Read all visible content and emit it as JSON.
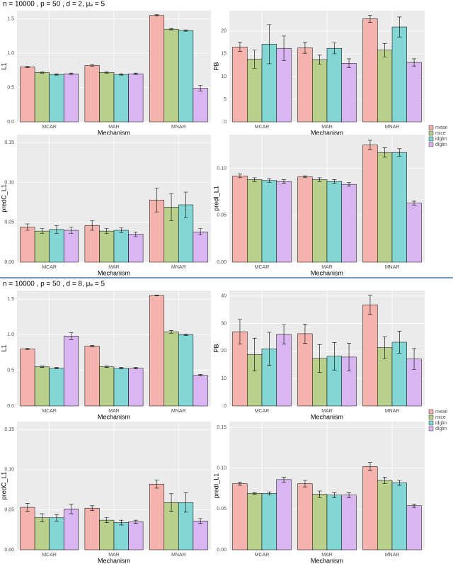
{
  "headings": [
    "n = 10000 , p = 50 , d = 2,  μₑ = 5",
    "n = 10000 , p = 50 , d = 8,  μₑ = 5"
  ],
  "chart_data": [
    {
      "type": "bar",
      "ylabel": "L1",
      "xlabel": "Mechanism",
      "categories": [
        "MCAR",
        "MAR",
        "MNAR"
      ],
      "ylim": [
        0,
        1.62
      ],
      "yticks": [
        {
          "value": 0,
          "label": "0.0"
        },
        0.5,
        {
          "value": 1,
          "label": "1.0"
        },
        1.5
      ],
      "series": [
        {
          "name": "mean",
          "color": "#F4B3AC",
          "values": [
            0.8,
            0.82,
            1.55
          ],
          "errors": [
            0.01,
            0.01,
            0.01
          ]
        },
        {
          "name": "mice",
          "color": "#B9CF8C",
          "values": [
            0.72,
            0.72,
            1.35
          ],
          "errors": [
            0.01,
            0.01,
            0.01
          ]
        },
        {
          "name": "idglm",
          "color": "#82D6D4",
          "values": [
            0.69,
            0.69,
            1.33
          ],
          "errors": [
            0.01,
            0.01,
            0.01
          ]
        },
        {
          "name": "dlglm",
          "color": "#D9B6F2",
          "values": [
            0.7,
            0.7,
            0.49
          ],
          "errors": [
            0.01,
            0.01,
            0.04
          ]
        }
      ]
    },
    {
      "type": "bar",
      "ylabel": "PB",
      "xlabel": "Mechanism",
      "categories": [
        "MCAR",
        "MAR",
        "MNAR"
      ],
      "ylim": [
        0,
        24.5
      ],
      "yticks": [
        0,
        5,
        10,
        15,
        20
      ],
      "legend": "right",
      "series": [
        {
          "name": "mean",
          "color": "#F4B3AC",
          "values": [
            16.5,
            16.3,
            22.7
          ],
          "errors": [
            1.0,
            1.2,
            0.8
          ]
        },
        {
          "name": "mice",
          "color": "#B9CF8C",
          "values": [
            13.8,
            13.7,
            15.8
          ],
          "errors": [
            2.0,
            1.0,
            1.5
          ]
        },
        {
          "name": "idglm",
          "color": "#82D6D4",
          "values": [
            17.1,
            16.2,
            20.9
          ],
          "errors": [
            4.3,
            1.2,
            2.2
          ]
        },
        {
          "name": "dlglm",
          "color": "#D9B6F2",
          "values": [
            16.2,
            12.9,
            13.1
          ],
          "errors": [
            2.7,
            1.0,
            0.8
          ]
        }
      ]
    },
    {
      "type": "bar",
      "ylabel": "predC_L1",
      "xlabel": "Mechanism",
      "categories": [
        "MCAR",
        "MAR",
        "MNAR"
      ],
      "ylim": [
        0,
        0.16
      ],
      "yticks": [
        {
          "value": 0,
          "label": "0.00"
        },
        0.05,
        {
          "value": 0.1,
          "label": "0.10"
        },
        0.15
      ],
      "series": [
        {
          "name": "mean",
          "color": "#F4B3AC",
          "values": [
            0.044,
            0.046,
            0.078
          ],
          "errors": [
            0.004,
            0.006,
            0.015
          ]
        },
        {
          "name": "mice",
          "color": "#B9CF8C",
          "values": [
            0.039,
            0.039,
            0.069
          ],
          "errors": [
            0.003,
            0.003,
            0.017
          ]
        },
        {
          "name": "idglm",
          "color": "#82D6D4",
          "values": [
            0.041,
            0.04,
            0.072
          ],
          "errors": [
            0.005,
            0.003,
            0.016
          ]
        },
        {
          "name": "dlglm",
          "color": "#D9B6F2",
          "values": [
            0.04,
            0.035,
            0.038
          ],
          "errors": [
            0.004,
            0.003,
            0.004
          ]
        }
      ]
    },
    {
      "type": "bar",
      "ylabel": "predI_L1",
      "xlabel": "Mechanism",
      "categories": [
        "MCAR",
        "MAR",
        "MNAR"
      ],
      "ylim": [
        0,
        0.136
      ],
      "yticks": [
        {
          "value": 0,
          "label": "0.00"
        },
        0.05,
        {
          "value": 0.1,
          "label": "0.10"
        }
      ],
      "series": [
        {
          "name": "mean",
          "color": "#F4B3AC",
          "values": [
            0.092,
            0.091,
            0.125
          ],
          "errors": [
            0.002,
            0.001,
            0.005
          ]
        },
        {
          "name": "mice",
          "color": "#B9CF8C",
          "values": [
            0.088,
            0.088,
            0.117
          ],
          "errors": [
            0.002,
            0.002,
            0.005
          ]
        },
        {
          "name": "idglm",
          "color": "#82D6D4",
          "values": [
            0.087,
            0.086,
            0.117
          ],
          "errors": [
            0.002,
            0.002,
            0.004
          ]
        },
        {
          "name": "dlglm",
          "color": "#D9B6F2",
          "values": [
            0.086,
            0.083,
            0.063
          ],
          "errors": [
            0.002,
            0.002,
            0.002
          ]
        }
      ]
    },
    {
      "type": "bar",
      "ylabel": "L1",
      "xlabel": "Mechanism",
      "categories": [
        "MCAR",
        "MAR",
        "MNAR"
      ],
      "ylim": [
        0,
        1.62
      ],
      "yticks": [
        {
          "value": 0,
          "label": "0.0"
        },
        0.5,
        {
          "value": 1,
          "label": "1.0"
        },
        1.5
      ],
      "series": [
        {
          "name": "mean",
          "color": "#F4B3AC",
          "values": [
            0.8,
            0.84,
            1.55
          ],
          "errors": [
            0.01,
            0.01,
            0.005
          ]
        },
        {
          "name": "mice",
          "color": "#B9CF8C",
          "values": [
            0.55,
            0.55,
            1.04
          ],
          "errors": [
            0.01,
            0.01,
            0.02
          ]
        },
        {
          "name": "idglm",
          "color": "#82D6D4",
          "values": [
            0.53,
            0.53,
            1.0
          ],
          "errors": [
            0.01,
            0.01,
            0.01
          ]
        },
        {
          "name": "dlglm",
          "color": "#D9B6F2",
          "values": [
            0.98,
            0.53,
            0.43
          ],
          "errors": [
            0.05,
            0.01,
            0.01
          ]
        }
      ]
    },
    {
      "type": "bar",
      "ylabel": "PB",
      "xlabel": "Mechanism",
      "categories": [
        "MCAR",
        "MAR",
        "MNAR"
      ],
      "ylim": [
        0,
        42
      ],
      "yticks": [
        0,
        10,
        20,
        30,
        40
      ],
      "legend": "right",
      "series": [
        {
          "name": "mean",
          "color": "#F4B3AC",
          "values": [
            27,
            26.3,
            36.8
          ],
          "errors": [
            4.5,
            3.5,
            3.5
          ]
        },
        {
          "name": "mice",
          "color": "#B9CF8C",
          "values": [
            18.7,
            17.3,
            21.2
          ],
          "errors": [
            6,
            5,
            4
          ]
        },
        {
          "name": "idglm",
          "color": "#82D6D4",
          "values": [
            20.8,
            18.1,
            23.2
          ],
          "errors": [
            6,
            5,
            4
          ]
        },
        {
          "name": "dlglm",
          "color": "#D9B6F2",
          "values": [
            26,
            17.8,
            17.1
          ],
          "errors": [
            3.5,
            5,
            3.8
          ]
        }
      ]
    },
    {
      "type": "bar",
      "ylabel": "predC_L1",
      "xlabel": "Mechanism",
      "categories": [
        "MCAR",
        "MAR",
        "MNAR"
      ],
      "ylim": [
        0,
        0.16
      ],
      "yticks": [
        {
          "value": 0,
          "label": "0.00"
        },
        0.05,
        {
          "value": 0.1,
          "label": "0.10"
        },
        0.15
      ],
      "series": [
        {
          "name": "mean",
          "color": "#F4B3AC",
          "values": [
            0.053,
            0.052,
            0.082
          ],
          "errors": [
            0.005,
            0.003,
            0.005
          ]
        },
        {
          "name": "mice",
          "color": "#B9CF8C",
          "values": [
            0.04,
            0.037,
            0.059
          ],
          "errors": [
            0.005,
            0.003,
            0.011
          ]
        },
        {
          "name": "idglm",
          "color": "#82D6D4",
          "values": [
            0.04,
            0.034,
            0.059
          ],
          "errors": [
            0.004,
            0.003,
            0.012
          ]
        },
        {
          "name": "dlglm",
          "color": "#D9B6F2",
          "values": [
            0.051,
            0.035,
            0.036
          ],
          "errors": [
            0.006,
            0.002,
            0.003
          ]
        }
      ]
    },
    {
      "type": "bar",
      "ylabel": "predI_L1",
      "xlabel": "Mechanism",
      "categories": [
        "MCAR",
        "MAR",
        "MNAR"
      ],
      "ylim": [
        0,
        0.157
      ],
      "yticks": [
        {
          "value": 0,
          "label": "0.00"
        },
        0.05,
        {
          "value": 0.1,
          "label": "0.10"
        },
        0.15
      ],
      "series": [
        {
          "name": "mean",
          "color": "#F4B3AC",
          "values": [
            0.081,
            0.081,
            0.102
          ],
          "errors": [
            0.002,
            0.004,
            0.005
          ]
        },
        {
          "name": "mice",
          "color": "#B9CF8C",
          "values": [
            0.069,
            0.068,
            0.085
          ],
          "errors": [
            0.001,
            0.004,
            0.004
          ]
        },
        {
          "name": "idglm",
          "color": "#82D6D4",
          "values": [
            0.069,
            0.067,
            0.082
          ],
          "errors": [
            0.002,
            0.003,
            0.003
          ]
        },
        {
          "name": "dlglm",
          "color": "#D9B6F2",
          "values": [
            0.086,
            0.067,
            0.054
          ],
          "errors": [
            0.003,
            0.003,
            0.002
          ]
        }
      ]
    }
  ]
}
